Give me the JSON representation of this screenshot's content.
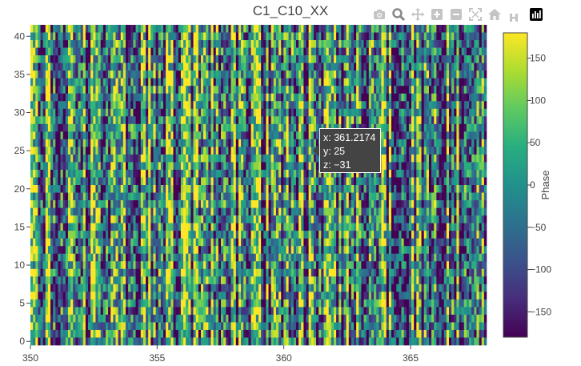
{
  "chart_data": {
    "type": "heatmap",
    "title": "C1_C10_XX",
    "xlabel": "",
    "ylabel": "",
    "xlim": [
      350,
      368
    ],
    "ylim": [
      -0.5,
      41.5
    ],
    "x_ticks": [
      "350",
      "355",
      "360",
      "365"
    ],
    "y_ticks": [
      "0",
      "5",
      "10",
      "15",
      "20",
      "25",
      "30",
      "35",
      "40"
    ],
    "colorscale": "viridis",
    "zlim": [
      -180,
      180
    ],
    "colorbar_title": "Phase",
    "colorbar_ticks": [
      "150",
      "100",
      "50",
      "0",
      "−50",
      "−100",
      "−150"
    ],
    "grid": false
  },
  "tooltip": {
    "x_line": "x: 361.2174",
    "y_line": "y: 25",
    "z_line": "z: −31"
  },
  "modebar": {
    "icons": [
      "camera-icon",
      "zoom-icon",
      "pan-icon",
      "zoom-in-icon",
      "zoom-out-icon",
      "autoscale-icon",
      "home-icon",
      "hover-toggle-icon",
      "plotly-logo-icon"
    ]
  },
  "colors": {
    "tooltip_bg": "#444444",
    "axis_text": "#444444",
    "modebar_icon": "#c4c4c4",
    "modebar_active": "#888888"
  }
}
